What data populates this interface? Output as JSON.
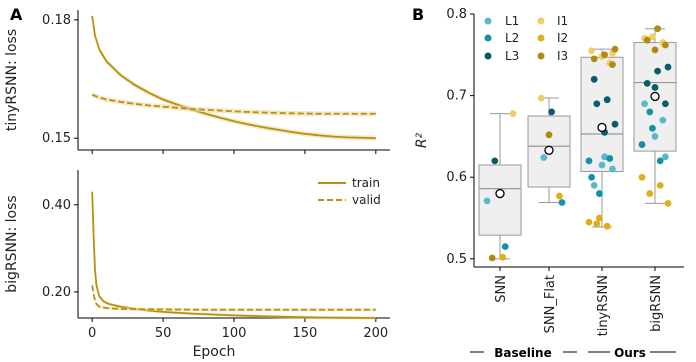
{
  "panels": {
    "a": "A",
    "b": "B"
  },
  "colors": {
    "train": "#B8900F",
    "band": "#EAD9A8",
    "box_fill": "#EFEFEF",
    "box_edge": "#999999",
    "L1": "#5BB8CC",
    "L2": "#1192A8",
    "L3": "#0B5A6E",
    "I1": "#F2CD65",
    "I2": "#E0AE16",
    "I3": "#B08C0C"
  },
  "chart_data": [
    {
      "type": "line",
      "ylabel": "tinyRSNN: loss",
      "yticks": [
        0.15,
        0.18
      ],
      "ylim": [
        0.147,
        0.1825
      ],
      "xlim": [
        -10,
        210
      ],
      "series": [
        {
          "name": "train",
          "style": "solid",
          "x": [
            0,
            2,
            5,
            10,
            20,
            30,
            40,
            50,
            60,
            70,
            80,
            90,
            100,
            110,
            120,
            130,
            140,
            150,
            160,
            170,
            180,
            190,
            200
          ],
          "y": [
            0.181,
            0.176,
            0.1725,
            0.1695,
            0.166,
            0.1635,
            0.1615,
            0.1598,
            0.1585,
            0.1573,
            0.1562,
            0.1552,
            0.1543,
            0.1535,
            0.1528,
            0.1522,
            0.1516,
            0.1511,
            0.1507,
            0.1504,
            0.1502,
            0.1501,
            0.15
          ]
        },
        {
          "name": "valid",
          "style": "dashed",
          "x": [
            0,
            5,
            10,
            20,
            30,
            40,
            50,
            60,
            70,
            80,
            90,
            100,
            120,
            140,
            160,
            180,
            200
          ],
          "y": [
            0.161,
            0.1603,
            0.1598,
            0.1592,
            0.1587,
            0.1583,
            0.158,
            0.1577,
            0.1574,
            0.1572,
            0.157,
            0.1568,
            0.1565,
            0.1563,
            0.1562,
            0.1562,
            0.1562
          ]
        }
      ]
    },
    {
      "type": "line",
      "xlabel": "Epoch",
      "ylabel": "bigRSNN: loss",
      "xticks": [
        0,
        50,
        100,
        150,
        200
      ],
      "yticks": [
        0.2,
        0.4
      ],
      "ylim": [
        0.14,
        0.48
      ],
      "xlim": [
        -10,
        210
      ],
      "legend": "top-right",
      "series": [
        {
          "name": "train",
          "style": "solid",
          "x": [
            0,
            1,
            2,
            3,
            5,
            8,
            12,
            20,
            30,
            40,
            50,
            70,
            100,
            130,
            160,
            200
          ],
          "y": [
            0.43,
            0.33,
            0.25,
            0.215,
            0.19,
            0.178,
            0.172,
            0.166,
            0.161,
            0.157,
            0.154,
            0.15,
            0.146,
            0.143,
            0.141,
            0.14
          ]
        },
        {
          "name": "valid",
          "style": "dashed",
          "x": [
            0,
            1,
            2,
            3,
            5,
            8,
            12,
            20,
            40,
            80,
            120,
            160,
            200
          ],
          "y": [
            0.215,
            0.195,
            0.18,
            0.172,
            0.166,
            0.164,
            0.162,
            0.161,
            0.16,
            0.159,
            0.159,
            0.159,
            0.159
          ]
        }
      ]
    },
    {
      "type": "box",
      "ylabel": "R²",
      "yticks": [
        0.5,
        0.6,
        0.7,
        0.8
      ],
      "ylim": [
        0.49,
        0.8
      ],
      "categories": [
        "SNN",
        "SNN_Flat",
        "tinyRSNN",
        "bigRSNN"
      ],
      "groups": [
        {
          "label": "Baseline",
          "span": [
            0,
            1
          ]
        },
        {
          "label": "Ours",
          "span": [
            2,
            3
          ]
        }
      ],
      "legend": [
        "L1",
        "L2",
        "L3",
        "I1",
        "I2",
        "I3"
      ],
      "boxes": [
        {
          "category": "SNN",
          "q1": 0.529,
          "median": 0.586,
          "q3": 0.615,
          "whisker_low": 0.5,
          "whisker_high": 0.678,
          "mean": 0.58,
          "points": [
            [
              "L1",
              0.571
            ],
            [
              "L2",
              0.515
            ],
            [
              "L3",
              0.62
            ],
            [
              "I1",
              0.678
            ],
            [
              "I2",
              0.502
            ],
            [
              "I3",
              0.501
            ]
          ]
        },
        {
          "category": "SNN_Flat",
          "q1": 0.588,
          "median": 0.638,
          "q3": 0.675,
          "whisker_low": 0.569,
          "whisker_high": 0.697,
          "mean": 0.633,
          "points": [
            [
              "L1",
              0.624
            ],
            [
              "L2",
              0.569
            ],
            [
              "L3",
              0.68
            ],
            [
              "I1",
              0.697
            ],
            [
              "I2",
              0.577
            ],
            [
              "I3",
              0.652
            ]
          ]
        },
        {
          "category": "tinyRSNN",
          "q1": 0.607,
          "median": 0.653,
          "q3": 0.747,
          "whisker_low": 0.539,
          "whisker_high": 0.757,
          "mean": 0.661,
          "points": [
            [
              "L1",
              0.625
            ],
            [
              "L1",
              0.59
            ],
            [
              "L1",
              0.61
            ],
            [
              "L1",
              0.615
            ],
            [
              "L2",
              0.6
            ],
            [
              "L2",
              0.623
            ],
            [
              "L2",
              0.58
            ],
            [
              "L2",
              0.62
            ],
            [
              "L3",
              0.695
            ],
            [
              "L3",
              0.69
            ],
            [
              "L3",
              0.665
            ],
            [
              "L3",
              0.655
            ],
            [
              "L3",
              0.72
            ],
            [
              "I1",
              0.752
            ],
            [
              "I1",
              0.748
            ],
            [
              "I1",
              0.755
            ],
            [
              "I1",
              0.74
            ],
            [
              "I2",
              0.55
            ],
            [
              "I2",
              0.545
            ],
            [
              "I2",
              0.54
            ],
            [
              "I2",
              0.543
            ],
            [
              "I3",
              0.757
            ],
            [
              "I3",
              0.75
            ],
            [
              "I3",
              0.745
            ],
            [
              "I3",
              0.738
            ]
          ]
        },
        {
          "category": "bigRSNN",
          "q1": 0.632,
          "median": 0.716,
          "q3": 0.765,
          "whisker_low": 0.568,
          "whisker_high": 0.782,
          "mean": 0.699,
          "points": [
            [
              "L1",
              0.625
            ],
            [
              "L1",
              0.65
            ],
            [
              "L1",
              0.69
            ],
            [
              "L1",
              0.67
            ],
            [
              "L2",
              0.66
            ],
            [
              "L2",
              0.64
            ],
            [
              "L2",
              0.62
            ],
            [
              "L2",
              0.68
            ],
            [
              "L3",
              0.735
            ],
            [
              "L3",
              0.73
            ],
            [
              "L3",
              0.715
            ],
            [
              "L3",
              0.69
            ],
            [
              "L3",
              0.71
            ],
            [
              "I1",
              0.77
            ],
            [
              "I1",
              0.765
            ],
            [
              "I1",
              0.772
            ],
            [
              "I2",
              0.6
            ],
            [
              "I2",
              0.59
            ],
            [
              "I2",
              0.58
            ],
            [
              "I2",
              0.568
            ],
            [
              "I3",
              0.782
            ],
            [
              "I3",
              0.768
            ],
            [
              "I3",
              0.762
            ],
            [
              "I3",
              0.756
            ]
          ]
        }
      ]
    }
  ]
}
